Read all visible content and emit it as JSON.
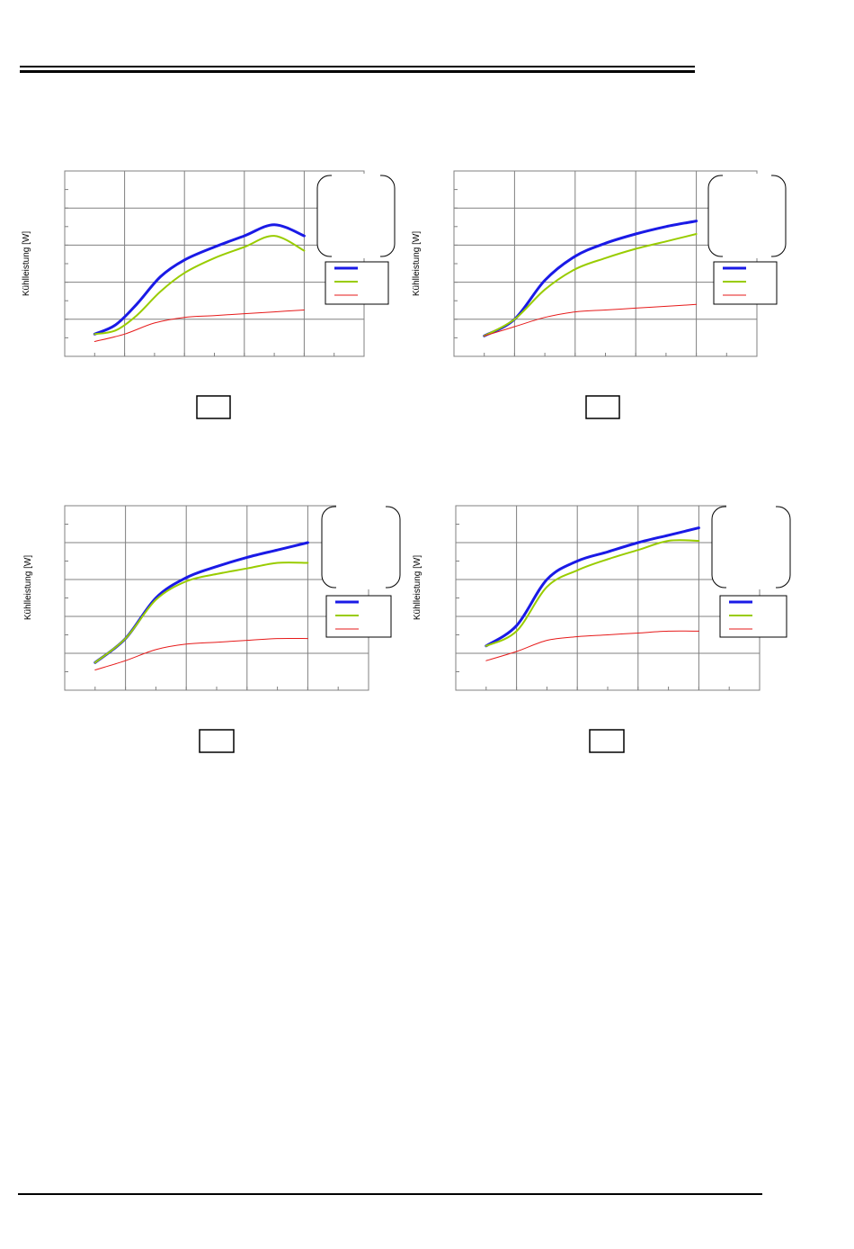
{
  "page": {
    "ylabel": "Kühlleistung [W]"
  },
  "series_colors": {
    "blue": "#1a1ae6",
    "green": "#99cc00",
    "red": "#e61a1a"
  },
  "chart_data": [
    {
      "type": "line",
      "ylabel": "Kühlleistung [W]",
      "xlim": [
        0,
        10
      ],
      "ylim": [
        0,
        10
      ],
      "grid": true,
      "legend": "right",
      "series": [
        {
          "color": "#1a1ae6",
          "x": [
            1,
            1.7,
            2.4,
            3.2,
            4,
            5,
            6,
            7,
            8
          ],
          "y": [
            1.2,
            1.7,
            2.8,
            4.3,
            5.2,
            5.9,
            6.5,
            7.1,
            6.5
          ]
        },
        {
          "color": "#99cc00",
          "x": [
            1,
            1.7,
            2.4,
            3.2,
            4,
            5,
            6,
            7,
            8
          ],
          "y": [
            1.2,
            1.4,
            2.2,
            3.5,
            4.5,
            5.3,
            5.9,
            6.5,
            5.7
          ]
        },
        {
          "color": "#e61a1a",
          "x": [
            1,
            2,
            3,
            4,
            5,
            6,
            7,
            8
          ],
          "y": [
            0.8,
            1.2,
            1.8,
            2.1,
            2.2,
            2.3,
            2.4,
            2.5
          ]
        }
      ]
    },
    {
      "type": "line",
      "ylabel": "Kühlleistung [W]",
      "xlim": [
        0,
        10
      ],
      "ylim": [
        0,
        10
      ],
      "grid": true,
      "legend": "right",
      "series": [
        {
          "color": "#1a1ae6",
          "x": [
            1,
            2,
            3,
            4,
            5,
            6,
            7,
            8
          ],
          "y": [
            1.1,
            2.0,
            4.1,
            5.4,
            6.1,
            6.6,
            7.0,
            7.3
          ]
        },
        {
          "color": "#99cc00",
          "x": [
            1,
            2,
            3,
            4,
            5,
            6,
            7,
            8
          ],
          "y": [
            1.1,
            2.0,
            3.6,
            4.7,
            5.3,
            5.8,
            6.2,
            6.6
          ]
        },
        {
          "color": "#e61a1a",
          "x": [
            1,
            2,
            3,
            4,
            5,
            6,
            7,
            8
          ],
          "y": [
            1.1,
            1.6,
            2.1,
            2.4,
            2.5,
            2.6,
            2.7,
            2.8
          ]
        }
      ]
    },
    {
      "type": "line",
      "ylabel": "Kühlleistung [W]",
      "xlim": [
        0,
        10
      ],
      "ylim": [
        0,
        10
      ],
      "grid": true,
      "legend": "right",
      "series": [
        {
          "color": "#1a1ae6",
          "x": [
            1,
            2,
            3,
            4,
            5,
            6,
            7,
            8
          ],
          "y": [
            1.5,
            2.8,
            5.0,
            6.1,
            6.7,
            7.2,
            7.6,
            8.0
          ]
        },
        {
          "color": "#99cc00",
          "x": [
            1,
            2,
            3,
            4,
            5,
            6,
            7,
            8
          ],
          "y": [
            1.5,
            2.8,
            4.9,
            5.9,
            6.3,
            6.6,
            6.9,
            6.9
          ]
        },
        {
          "color": "#e61a1a",
          "x": [
            1,
            2,
            3,
            4,
            5,
            6,
            7,
            8
          ],
          "y": [
            1.1,
            1.6,
            2.2,
            2.5,
            2.6,
            2.7,
            2.8,
            2.8
          ]
        }
      ]
    },
    {
      "type": "line",
      "ylabel": "Kühlleistung [W]",
      "xlim": [
        0,
        10
      ],
      "ylim": [
        0,
        10
      ],
      "grid": true,
      "legend": "right",
      "series": [
        {
          "color": "#1a1ae6",
          "x": [
            1,
            2,
            3,
            4,
            5,
            6,
            7,
            8
          ],
          "y": [
            2.4,
            3.5,
            6.0,
            7.0,
            7.5,
            8.0,
            8.4,
            8.8
          ]
        },
        {
          "color": "#99cc00",
          "x": [
            1,
            2,
            3,
            4,
            5,
            6,
            7,
            8
          ],
          "y": [
            2.4,
            3.2,
            5.6,
            6.5,
            7.1,
            7.6,
            8.1,
            8.1
          ]
        },
        {
          "color": "#e61a1a",
          "x": [
            1,
            2,
            3,
            4,
            5,
            6,
            7,
            8
          ],
          "y": [
            1.6,
            2.1,
            2.7,
            2.9,
            3.0,
            3.1,
            3.2,
            3.2
          ]
        }
      ]
    }
  ]
}
